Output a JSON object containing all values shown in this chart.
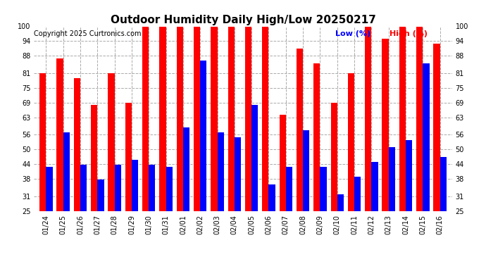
{
  "title": "Outdoor Humidity Daily High/Low 20250217",
  "copyright": "Copyright 2025 Curtronics.com",
  "legend_low": "Low (%)",
  "legend_high": "High (%)",
  "dates": [
    "01/24",
    "01/25",
    "01/26",
    "01/27",
    "01/28",
    "01/29",
    "01/30",
    "01/31",
    "02/01",
    "02/02",
    "02/03",
    "02/04",
    "02/05",
    "02/06",
    "02/07",
    "02/08",
    "02/09",
    "02/10",
    "02/11",
    "02/12",
    "02/13",
    "02/14",
    "02/15",
    "02/16"
  ],
  "high": [
    81,
    87,
    79,
    68,
    81,
    69,
    100,
    100,
    100,
    100,
    100,
    100,
    100,
    100,
    64,
    91,
    85,
    69,
    81,
    100,
    95,
    100,
    100,
    93
  ],
  "low": [
    43,
    57,
    44,
    38,
    44,
    46,
    44,
    43,
    59,
    86,
    57,
    55,
    68,
    36,
    43,
    58,
    43,
    32,
    39,
    45,
    51,
    54,
    85,
    47
  ],
  "ylim_min": 25,
  "ylim_max": 100,
  "yticks": [
    25,
    31,
    38,
    44,
    50,
    56,
    63,
    69,
    75,
    81,
    88,
    94,
    100
  ],
  "bar_width": 0.38,
  "high_color": "#ff0000",
  "low_color": "#0000ff",
  "bg_color": "#ffffff",
  "grid_color": "#aaaaaa",
  "title_fontsize": 11,
  "copyright_fontsize": 7,
  "tick_fontsize": 7
}
